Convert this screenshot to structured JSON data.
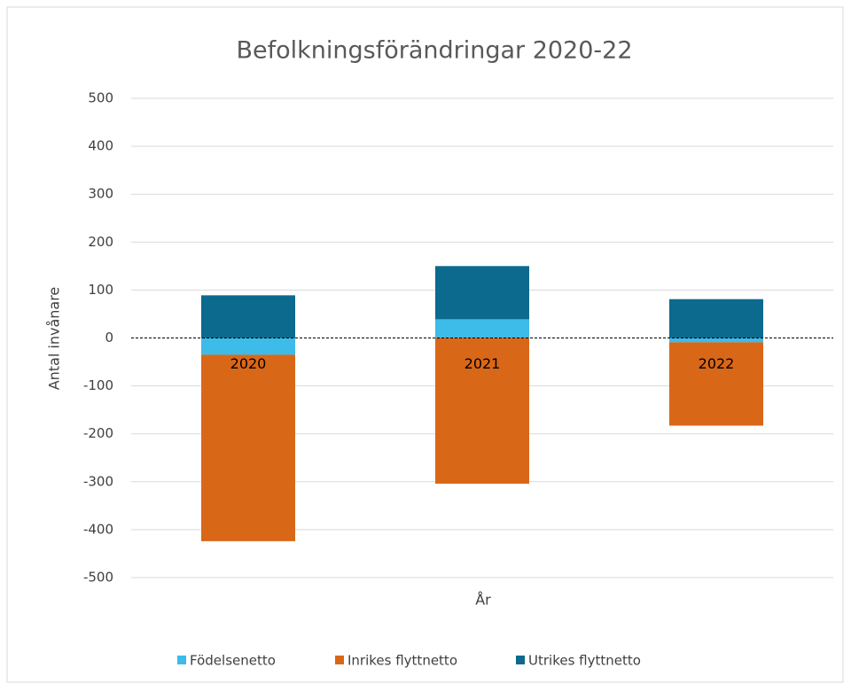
{
  "chart_data": {
    "type": "stacked_bar",
    "title": "Befolkningsförändringar 2020-22",
    "x_label": "År",
    "y_label": "Antal invånare",
    "categories": [
      "2020",
      "2021",
      "2022"
    ],
    "series": [
      {
        "name": "Födelsenetto",
        "color": "#3dbbe9",
        "values": [
          -35,
          39,
          -9
        ]
      },
      {
        "name": "Inrikes flyttnetto",
        "color": "#d96718",
        "values": [
          -389,
          -304,
          -174
        ]
      },
      {
        "name": "Utrikes flyttnetto",
        "color": "#0b6a8d",
        "values": [
          89,
          111,
          81
        ]
      }
    ],
    "ylim": [
      -500,
      500
    ],
    "yticks": [
      -500,
      -400,
      -300,
      -200,
      -100,
      0,
      100,
      200,
      300,
      400,
      500
    ],
    "grid": true,
    "legend": "bottom"
  }
}
